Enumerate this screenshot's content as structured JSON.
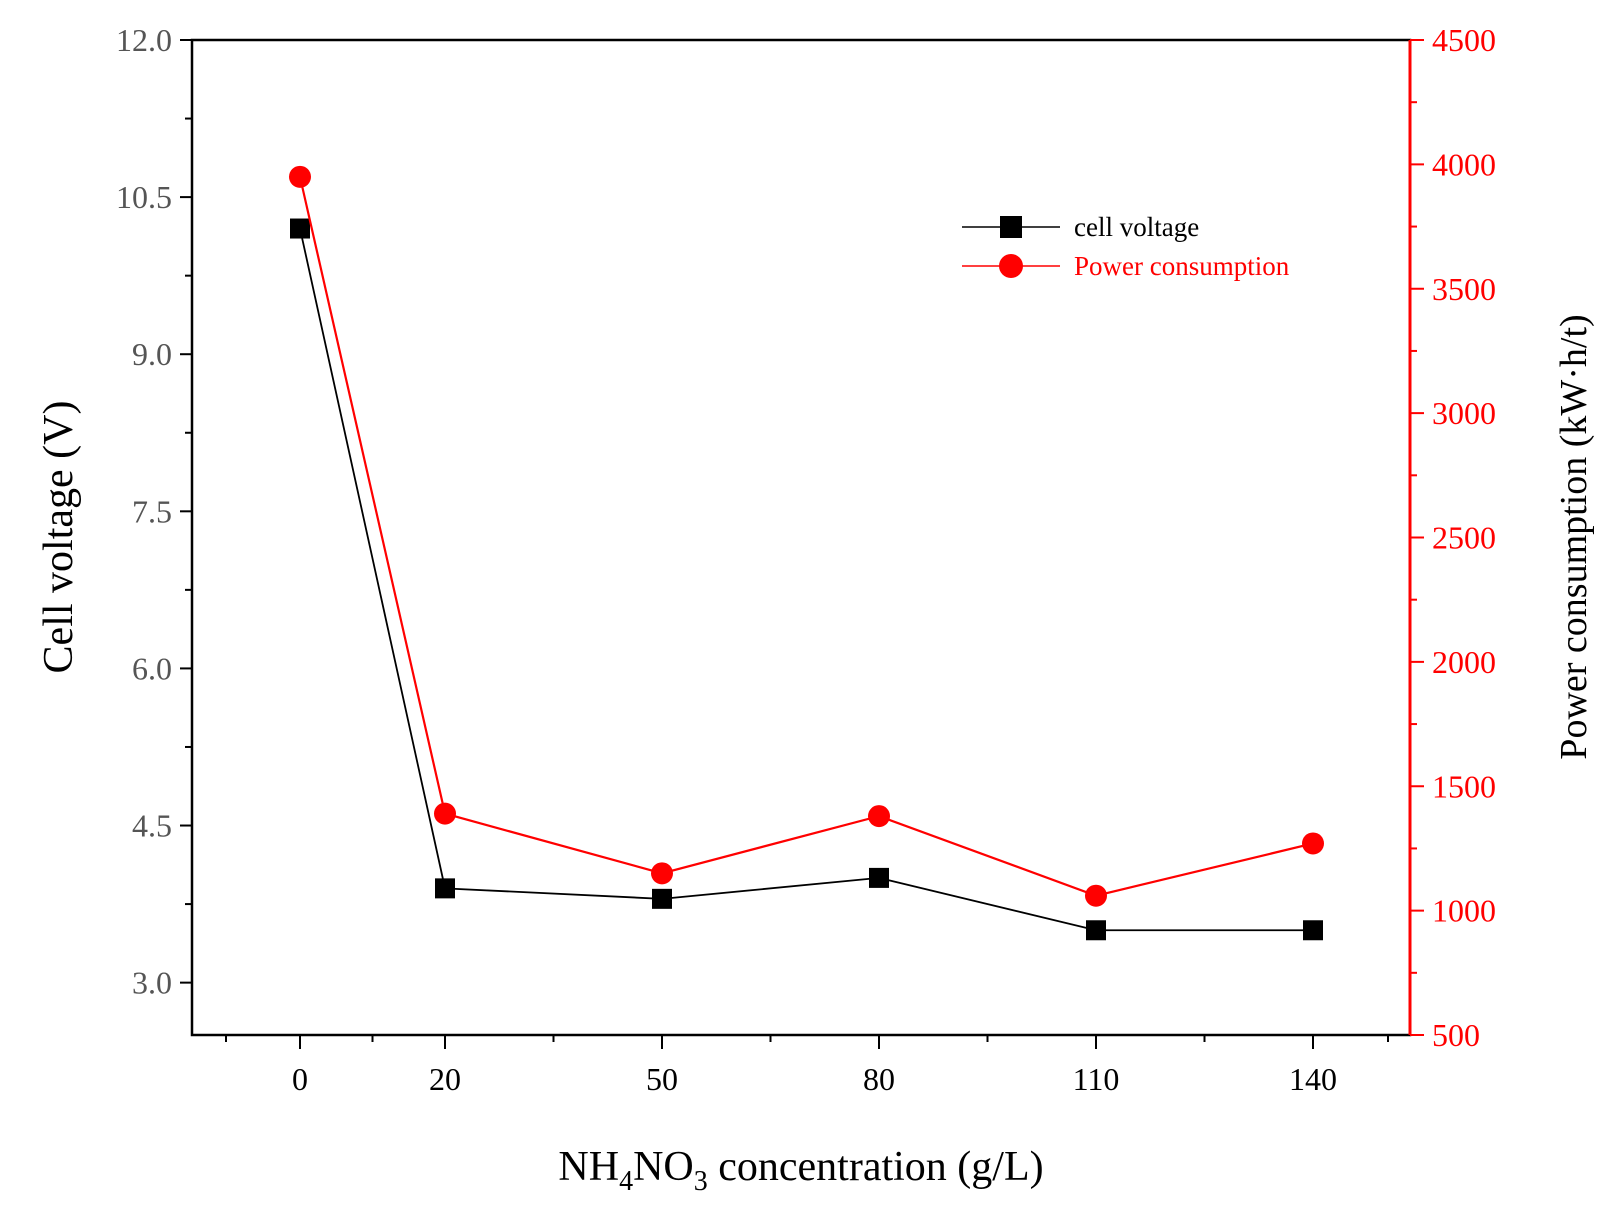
{
  "chart_data": {
    "type": "line",
    "x_categories": [
      "0",
      "20",
      "50",
      "80",
      "110",
      "140"
    ],
    "xlabel": {
      "prefix": "NH",
      "sub1": "4",
      "mid": "NO",
      "sub2": "3",
      "suffix": " concentration  (g/L)"
    },
    "y_left": {
      "label": "Cell voltage (V)",
      "range": [
        2.5,
        12.0
      ],
      "ticks": [
        3.0,
        4.5,
        6.0,
        7.5,
        9.0,
        10.5,
        12.0
      ],
      "tick_labels": [
        "3.0",
        "4.5",
        "6.0",
        "7.5",
        "9.0",
        "10.5",
        "12.0"
      ]
    },
    "y_right": {
      "label": "Power consumption  (kW·h/t)",
      "range": [
        500,
        4500
      ],
      "ticks": [
        500,
        1000,
        1500,
        2000,
        2500,
        3000,
        3500,
        4000,
        4500
      ],
      "tick_labels": [
        "500",
        "1000",
        "1500",
        "2000",
        "2500",
        "3000",
        "3500",
        "4000",
        "4500"
      ],
      "color": "#ff0000"
    },
    "series": [
      {
        "name": "cell voltage",
        "axis": "left",
        "marker": "square",
        "color": "#000000",
        "values": [
          10.2,
          3.9,
          3.8,
          4.0,
          3.5,
          3.5
        ]
      },
      {
        "name": "Power consumption",
        "axis": "right",
        "marker": "circle",
        "color": "#ff0000",
        "values": [
          3950,
          1390,
          1150,
          1380,
          1060,
          1270
        ]
      }
    ],
    "legend_position": "top-right"
  }
}
